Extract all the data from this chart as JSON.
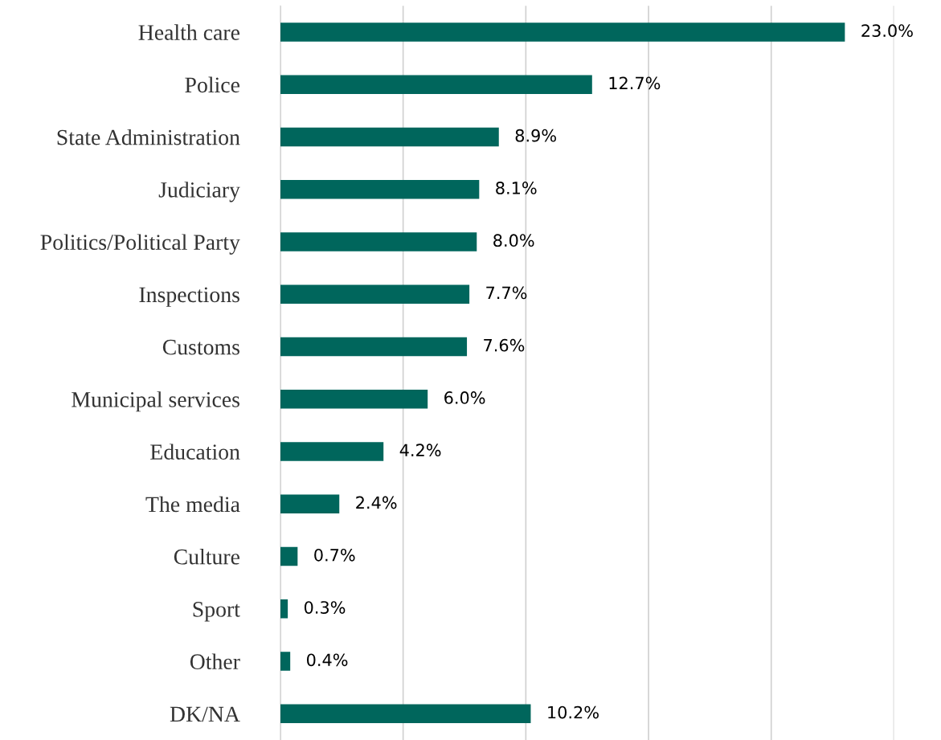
{
  "chart_data": {
    "type": "bar",
    "orientation": "horizontal",
    "categories": [
      "Health care",
      "Police",
      "State Administration",
      "Judiciary",
      "Politics/Political Party",
      "Inspections",
      "Customs",
      "Municipal services",
      "Education",
      "The media",
      "Culture",
      "Sport",
      "Other",
      "DK/NA"
    ],
    "values": [
      23.0,
      12.7,
      8.9,
      8.1,
      8.0,
      7.7,
      7.6,
      6.0,
      4.2,
      2.4,
      0.7,
      0.3,
      0.4,
      10.2
    ],
    "value_labels": [
      "23.0%",
      "12.7%",
      "8.9%",
      "8.1%",
      "8.0%",
      "7.7%",
      "7.6%",
      "6.0%",
      "4.2%",
      "2.4%",
      "0.7%",
      "0.3%",
      "0.4%",
      "10.2%"
    ],
    "color": "#00665c",
    "xlim": [
      0,
      25
    ],
    "xticks": [
      {
        "value": 0,
        "label": null
      },
      {
        "value": 5,
        "label": null
      },
      {
        "value": 10,
        "label": null
      },
      {
        "value": 15,
        "label": null
      },
      {
        "value": 20,
        "label": null
      },
      {
        "value": 25,
        "label": null
      }
    ],
    "grid": "x",
    "tick_labels": "y",
    "legend": false
  }
}
